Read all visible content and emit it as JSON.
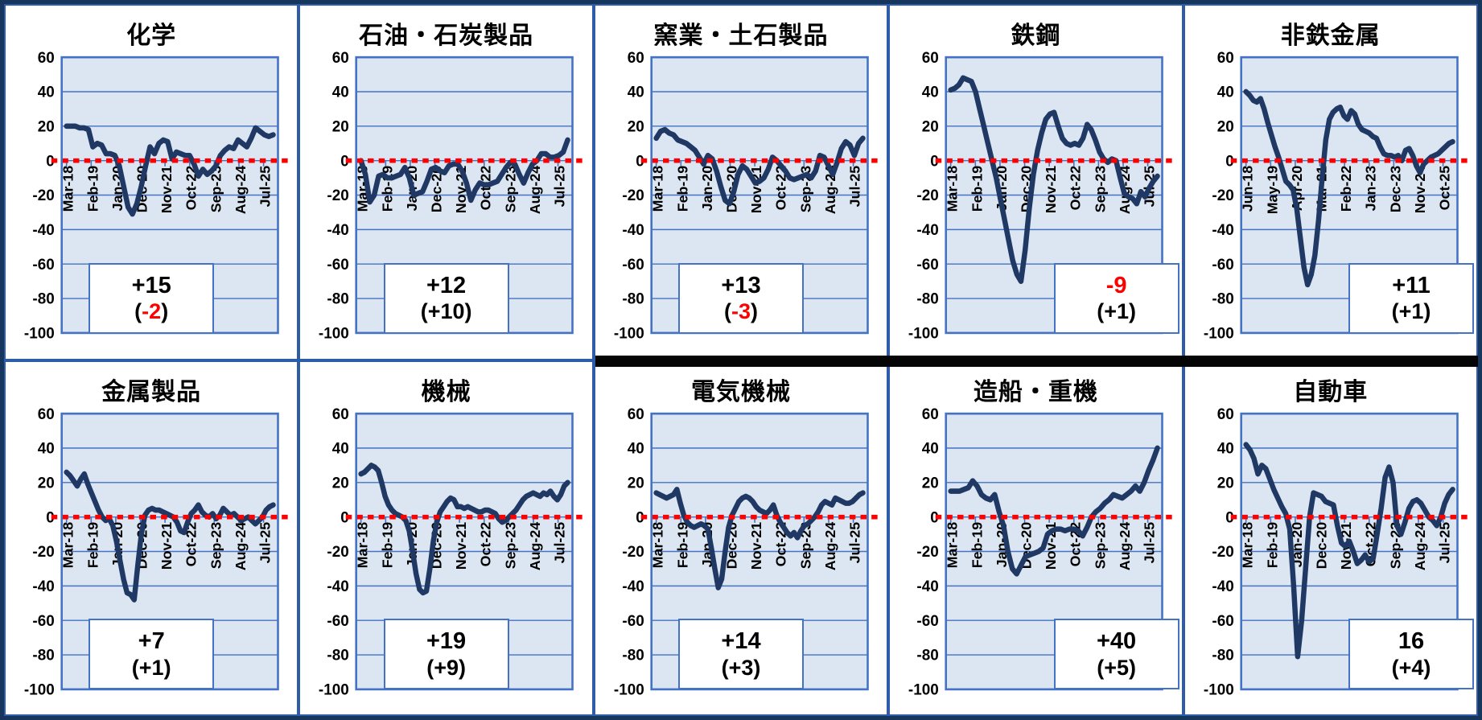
{
  "figure": {
    "background": "#FFFFFF",
    "frame_color": "#16365C",
    "card_border_color": "#2F5CA8",
    "plot_bg": "#DCE6F2",
    "grid_color": "#4472C4",
    "line_color": "#1F3864",
    "zero_line_color": "#FF0000",
    "negative_color": "#FF0000",
    "text_color": "#000000"
  },
  "y_axis": {
    "min": -100,
    "max": 60,
    "ticks": [
      60,
      40,
      20,
      0,
      -20,
      -40,
      -60,
      -80,
      -100
    ]
  },
  "chart_data": [
    {
      "type": "line",
      "title": "化学",
      "x_tick_labels": [
        "Mar-18",
        "Feb-19",
        "Jan-20",
        "Dec-20",
        "Nov-21",
        "Oct-22",
        "Sep-23",
        "Aug-24",
        "Jul-25"
      ],
      "annotation": {
        "value": "+15",
        "value_negative": false,
        "change": "-2",
        "change_negative": true,
        "box_position": "center"
      },
      "values": [
        20,
        20,
        20,
        19,
        19,
        18,
        8,
        10,
        9,
        4,
        4,
        3,
        -3,
        -15,
        -27,
        -31,
        -25,
        -15,
        -3,
        8,
        4,
        10,
        12,
        11,
        1,
        5,
        4,
        3,
        3,
        -2,
        -9,
        -5,
        -8,
        -6,
        -3,
        3,
        6,
        8,
        7,
        12,
        10,
        8,
        13,
        19,
        17,
        15,
        14,
        15
      ]
    },
    {
      "type": "line",
      "title": "石油・石炭製品",
      "x_tick_labels": [
        "Mar-18",
        "Feb-19",
        "Jan-20",
        "Dec-20",
        "Nov-21",
        "Oct-22",
        "Sep-23",
        "Aug-24",
        "Jul-25"
      ],
      "annotation": {
        "value": "+12",
        "value_negative": false,
        "change": "+10",
        "change_negative": false,
        "box_position": "center"
      },
      "values": [
        0,
        -8,
        -24,
        -20,
        -9,
        -8,
        -10,
        -10,
        -9,
        -8,
        -4,
        -10,
        -20,
        -19,
        -18,
        -12,
        -5,
        -4,
        -6,
        -7,
        -3,
        -2,
        -2,
        -6,
        -13,
        -23,
        -17,
        -13,
        -14,
        -14,
        -13,
        -12,
        -8,
        -4,
        -1,
        -2,
        -8,
        -13,
        -7,
        -2,
        0,
        4,
        4,
        2,
        2,
        3,
        5,
        12
      ]
    },
    {
      "type": "line",
      "title": "窯業・土石製品",
      "x_tick_labels": [
        "Mar-18",
        "Feb-19",
        "Jan-20",
        "Dec-20",
        "Nov-21",
        "Oct-22",
        "Sep-23",
        "Aug-24",
        "Jul-25"
      ],
      "annotation": {
        "value": "+13",
        "value_negative": false,
        "change": "-3",
        "change_negative": true,
        "box_position": "center"
      },
      "values": [
        13,
        17,
        18,
        16,
        15,
        12,
        11,
        10,
        8,
        6,
        2,
        -2,
        3,
        1,
        -6,
        -15,
        -23,
        -25,
        -18,
        -8,
        -3,
        -5,
        -9,
        -13,
        -12,
        -10,
        -5,
        2,
        0,
        -3,
        -6,
        -10,
        -11,
        -10,
        -9,
        -8,
        -10,
        -6,
        3,
        2,
        -3,
        -8,
        -1,
        7,
        11,
        9,
        3,
        10,
        13
      ]
    },
    {
      "type": "line",
      "title": "鉄鋼",
      "x_tick_labels": [
        "Mar-18",
        "Feb-19",
        "Jan-20",
        "Dec-20",
        "Nov-21",
        "Oct-22",
        "Sep-23",
        "Aug-24",
        "Jul-25"
      ],
      "annotation": {
        "value": "-9",
        "value_negative": true,
        "change": "+1",
        "change_negative": false,
        "box_position": "right"
      },
      "values": [
        41,
        42,
        44,
        48,
        47,
        46,
        40,
        30,
        20,
        10,
        0,
        -10,
        -22,
        -34,
        -46,
        -58,
        -66,
        -70,
        -52,
        -28,
        -8,
        6,
        16,
        24,
        27,
        28,
        20,
        13,
        10,
        9,
        10,
        9,
        13,
        21,
        18,
        12,
        5,
        1,
        -1,
        1,
        0,
        -10,
        -19,
        -21,
        -22,
        -25,
        -18,
        -21,
        -16,
        -12,
        -9
      ]
    },
    {
      "type": "line",
      "title": "非鉄金属",
      "x_tick_labels": [
        "Jun-18",
        "May-19",
        "Apr-20",
        "Mar-21",
        "Feb-22",
        "Jan-23",
        "Dec-23",
        "Nov-24",
        "Oct-25"
      ],
      "annotation": {
        "value": "+11",
        "value_negative": false,
        "change": "+1",
        "change_negative": false,
        "box_position": "right"
      },
      "values": [
        40,
        38,
        35,
        34,
        36,
        30,
        22,
        15,
        8,
        2,
        -5,
        -12,
        -14,
        -17,
        -28,
        -45,
        -62,
        -72,
        -66,
        -55,
        -35,
        -10,
        12,
        24,
        28,
        30,
        31,
        26,
        24,
        29,
        27,
        21,
        18,
        17,
        16,
        14,
        13,
        8,
        4,
        3,
        3,
        2,
        3,
        0,
        6,
        7,
        3,
        -3,
        -7,
        -2,
        0,
        2,
        3,
        4,
        6,
        8,
        10,
        11
      ]
    },
    {
      "type": "line",
      "title": "金属製品",
      "x_tick_labels": [
        "Mar-18",
        "Feb-19",
        "Jan-20",
        "Dec-20",
        "Nov-21",
        "Oct-22",
        "Sep-23",
        "Aug-24",
        "Jul-25"
      ],
      "annotation": {
        "value": "+7",
        "value_negative": false,
        "change": "+1",
        "change_negative": false,
        "box_position": "center"
      },
      "values": [
        26,
        24,
        21,
        18,
        22,
        25,
        19,
        14,
        9,
        4,
        0,
        -2,
        -1,
        -5,
        -14,
        -25,
        -36,
        -44,
        -45,
        -48,
        -28,
        -10,
        1,
        4,
        5,
        4,
        4,
        3,
        2,
        1,
        0,
        -3,
        -8,
        -9,
        -3,
        2,
        4,
        7,
        3,
        1,
        0,
        2,
        -1,
        1,
        5,
        3,
        1,
        2,
        0,
        -2,
        -1,
        0,
        -2,
        -4,
        -2,
        0,
        4,
        6,
        7
      ]
    },
    {
      "type": "line",
      "title": "機械",
      "x_tick_labels": [
        "Mar-18",
        "Feb-19",
        "Jan-20",
        "Dec-20",
        "Nov-21",
        "Oct-22",
        "Sep-23",
        "Aug-24",
        "Jul-25"
      ],
      "annotation": {
        "value": "+19",
        "value_negative": false,
        "change": "+9",
        "change_negative": false,
        "box_position": "center"
      },
      "values": [
        25,
        26,
        28,
        30,
        29,
        27,
        20,
        12,
        7,
        4,
        2,
        1,
        0,
        -2,
        -8,
        -20,
        -33,
        -42,
        -44,
        -43,
        -30,
        -14,
        -3,
        3,
        6,
        9,
        11,
        10,
        6,
        6,
        5,
        6,
        5,
        4,
        3,
        3,
        4,
        4,
        3,
        2,
        -1,
        -3,
        -2,
        0,
        2,
        4,
        7,
        10,
        12,
        13,
        14,
        13,
        12,
        14,
        13,
        15,
        12,
        10,
        13,
        18,
        20
      ]
    },
    {
      "type": "line",
      "title": "電気機械",
      "x_tick_labels": [
        "Mar-18",
        "Feb-19",
        "Jan-20",
        "Dec-20",
        "Nov-21",
        "Oct-22",
        "Sep-23",
        "Aug-24",
        "Jul-25"
      ],
      "annotation": {
        "value": "+14",
        "value_negative": false,
        "change": "+3",
        "change_negative": false,
        "box_position": "center"
      },
      "values": [
        14,
        13,
        12,
        11,
        12,
        13,
        16,
        8,
        1,
        -3,
        -5,
        -6,
        -5,
        -4,
        -5,
        -7,
        -18,
        -30,
        -41,
        -36,
        -20,
        -6,
        1,
        5,
        9,
        11,
        12,
        11,
        9,
        6,
        4,
        3,
        2,
        4,
        7,
        1,
        -3,
        -6,
        -9,
        -11,
        -9,
        -12,
        -8,
        -5,
        -4,
        -2,
        0,
        3,
        7,
        9,
        8,
        7,
        11,
        10,
        9,
        8,
        8,
        9,
        11,
        13,
        14
      ]
    },
    {
      "type": "line",
      "title": "造船・重機",
      "x_tick_labels": [
        "Mar-18",
        "Feb-19",
        "Jan-20",
        "Dec-20",
        "Nov-21",
        "Oct-22",
        "Sep-23",
        "Aug-24",
        "Jul-25"
      ],
      "annotation": {
        "value": "+40",
        "value_negative": false,
        "change": "+5",
        "change_negative": false,
        "box_position": "right"
      },
      "values": [
        15,
        15,
        15,
        16,
        17,
        21,
        18,
        13,
        11,
        10,
        13,
        3,
        -5,
        -20,
        -30,
        -33,
        -28,
        -23,
        -22,
        -21,
        -20,
        -18,
        -10,
        -8,
        -7,
        -7,
        -8,
        -7,
        -7,
        -8,
        -11,
        -6,
        0,
        3,
        5,
        8,
        10,
        13,
        12,
        11,
        13,
        15,
        18,
        15,
        20,
        27,
        33,
        40
      ]
    },
    {
      "type": "line",
      "title": "自動車",
      "x_tick_labels": [
        "Mar-18",
        "Feb-19",
        "Jan-20",
        "Dec-20",
        "Nov-21",
        "Oct-22",
        "Sep-23",
        "Aug-24",
        "Jul-25"
      ],
      "annotation": {
        "value": "16",
        "value_negative": false,
        "change": "+4",
        "change_negative": false,
        "box_position": "right"
      },
      "values": [
        42,
        39,
        34,
        25,
        30,
        28,
        22,
        16,
        11,
        6,
        2,
        -7,
        -40,
        -81,
        -60,
        -30,
        0,
        14,
        13,
        12,
        9,
        8,
        7,
        -5,
        -15,
        -17,
        -14,
        -20,
        -27,
        -25,
        -22,
        -26,
        -24,
        -10,
        5,
        23,
        29,
        20,
        -5,
        -10,
        -3,
        5,
        9,
        10,
        8,
        4,
        0,
        -2,
        -5,
        0,
        8,
        13,
        16
      ]
    }
  ]
}
